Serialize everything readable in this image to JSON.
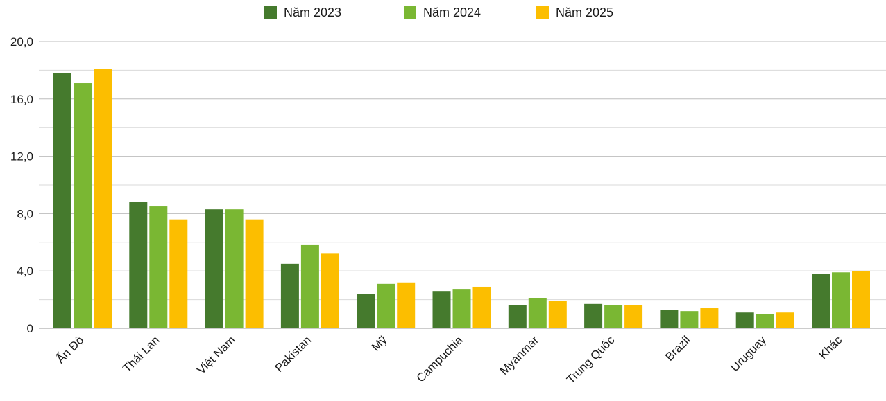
{
  "chart_data": {
    "type": "bar",
    "categories": [
      "Ấn Độ",
      "Thái Lan",
      "Việt Nam",
      "Pakistan",
      "Mỹ",
      "Campuchia",
      "Myanmar",
      "Trung Quốc",
      "Brazil",
      "Uruguay",
      "Khác"
    ],
    "series": [
      {
        "name": "Năm 2023",
        "color": "#457a2d",
        "values": [
          17.8,
          8.8,
          8.3,
          4.5,
          2.4,
          2.6,
          1.6,
          1.7,
          1.3,
          1.1,
          3.8
        ]
      },
      {
        "name": "Năm 2024",
        "color": "#7ab733",
        "values": [
          17.1,
          8.5,
          8.3,
          5.8,
          3.1,
          2.7,
          2.1,
          1.6,
          1.2,
          1.0,
          3.9
        ]
      },
      {
        "name": "Năm 2025",
        "color": "#fcbe00",
        "values": [
          18.1,
          7.6,
          7.6,
          5.2,
          3.2,
          2.9,
          1.9,
          1.6,
          1.4,
          1.1,
          4.0
        ]
      }
    ],
    "y_ticks": [
      "0",
      "4,0",
      "8,0",
      "12,0",
      "16,0",
      "20,0"
    ],
    "y_tick_values": [
      0,
      4,
      8,
      12,
      16,
      20
    ],
    "ylim": [
      0,
      20
    ],
    "grid": true,
    "legend_position": "top-center",
    "title": "",
    "xlabel": "",
    "ylabel": ""
  }
}
